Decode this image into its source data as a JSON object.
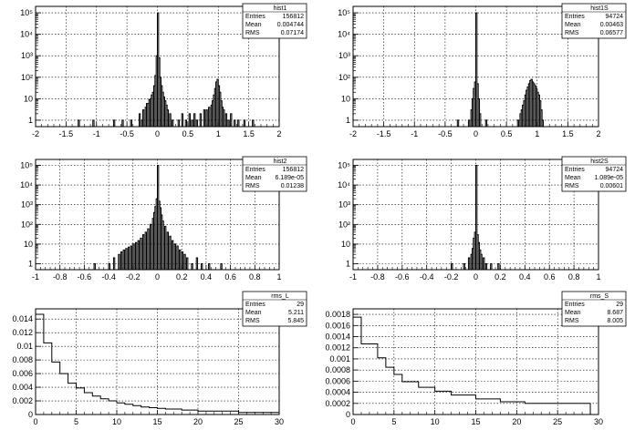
{
  "chart_data": [
    {
      "id": "hist1",
      "type": "histogram",
      "log_y": true,
      "xlim": [
        -2,
        2
      ],
      "ylim": [
        0.5,
        200000
      ],
      "x_ticks": [
        -2,
        -1.5,
        -1,
        -0.5,
        0,
        0.5,
        1,
        1.5,
        2
      ],
      "x_tick_labels": [
        "-2",
        "-1.5",
        "-1",
        "-0.5",
        "0",
        "0.5",
        "1",
        "1.5",
        "2"
      ],
      "y_tick_labels": [
        "1",
        "10",
        "10²",
        "10³",
        "10⁴",
        "10⁵"
      ],
      "grid": true,
      "bin_width": 0.02,
      "bins": [
        [
          -1.3,
          1
        ],
        [
          -1.06,
          1
        ],
        [
          -0.72,
          1
        ],
        [
          -0.58,
          1
        ],
        [
          -0.44,
          1
        ],
        [
          -0.3,
          2
        ],
        [
          -0.26,
          1
        ],
        [
          -0.24,
          3
        ],
        [
          -0.2,
          4
        ],
        [
          -0.18,
          6
        ],
        [
          -0.16,
          6
        ],
        [
          -0.14,
          9
        ],
        [
          -0.12,
          10
        ],
        [
          -0.1,
          15
        ],
        [
          -0.08,
          20
        ],
        [
          -0.06,
          40
        ],
        [
          -0.04,
          120
        ],
        [
          -0.02,
          1000
        ],
        [
          0,
          100000
        ],
        [
          0.02,
          800
        ],
        [
          0.04,
          100
        ],
        [
          0.06,
          40
        ],
        [
          0.08,
          20
        ],
        [
          0.1,
          12
        ],
        [
          0.12,
          8
        ],
        [
          0.14,
          5
        ],
        [
          0.16,
          3
        ],
        [
          0.2,
          2
        ],
        [
          0.24,
          1
        ],
        [
          0.34,
          1
        ],
        [
          0.4,
          2
        ],
        [
          0.46,
          1
        ],
        [
          0.52,
          2
        ],
        [
          0.56,
          1
        ],
        [
          0.6,
          2
        ],
        [
          0.64,
          1
        ],
        [
          0.7,
          2
        ],
        [
          0.76,
          3
        ],
        [
          0.8,
          3
        ],
        [
          0.84,
          4
        ],
        [
          0.88,
          5
        ],
        [
          0.9,
          8
        ],
        [
          0.92,
          15
        ],
        [
          0.94,
          30
        ],
        [
          0.96,
          60
        ],
        [
          0.98,
          80
        ],
        [
          1.0,
          40
        ],
        [
          1.02,
          20
        ],
        [
          1.04,
          8
        ],
        [
          1.06,
          4
        ],
        [
          1.08,
          3
        ],
        [
          1.12,
          2
        ],
        [
          1.16,
          1
        ],
        [
          1.2,
          2
        ],
        [
          1.26,
          1
        ],
        [
          1.32,
          1
        ],
        [
          1.42,
          1
        ],
        [
          1.56,
          1
        ]
      ],
      "stats": {
        "title": "hist1",
        "rows": [
          [
            "Entries",
            "156812"
          ],
          [
            "Mean",
            "0.004744"
          ],
          [
            "RMS",
            "0.07174"
          ]
        ]
      }
    },
    {
      "id": "hist1S",
      "type": "histogram",
      "log_y": true,
      "xlim": [
        -2,
        2
      ],
      "ylim": [
        0.5,
        200000
      ],
      "x_ticks": [
        -2,
        -1.5,
        -1,
        -0.5,
        0,
        0.5,
        1,
        1.5,
        2
      ],
      "x_tick_labels": [
        "-2",
        "-1.5",
        "-1",
        "-0.5",
        "0",
        "0.5",
        "1",
        "1.5",
        "2"
      ],
      "y_tick_labels": [
        "1",
        "10",
        "10²",
        "10³",
        "10⁴",
        "10⁵"
      ],
      "grid": true,
      "bin_width": 0.02,
      "bins": [
        [
          -0.3,
          1
        ],
        [
          -0.12,
          1
        ],
        [
          -0.08,
          3
        ],
        [
          -0.06,
          10
        ],
        [
          -0.04,
          30
        ],
        [
          -0.02,
          60
        ],
        [
          0,
          100000
        ],
        [
          0.02,
          50
        ],
        [
          0.04,
          10
        ],
        [
          0.06,
          2
        ],
        [
          0.16,
          1
        ],
        [
          0.68,
          1
        ],
        [
          0.72,
          2
        ],
        [
          0.74,
          3
        ],
        [
          0.76,
          5
        ],
        [
          0.78,
          8
        ],
        [
          0.8,
          15
        ],
        [
          0.82,
          25
        ],
        [
          0.84,
          35
        ],
        [
          0.86,
          50
        ],
        [
          0.88,
          70
        ],
        [
          0.9,
          80
        ],
        [
          0.92,
          60
        ],
        [
          0.94,
          50
        ],
        [
          0.96,
          40
        ],
        [
          0.98,
          30
        ],
        [
          1.0,
          20
        ],
        [
          1.02,
          15
        ],
        [
          1.04,
          8
        ],
        [
          1.06,
          3
        ],
        [
          1.08,
          1
        ]
      ],
      "stats": {
        "title": "hist1S",
        "rows": [
          [
            "Entries",
            "94724"
          ],
          [
            "Mean",
            "0.00463"
          ],
          [
            "RMS",
            "0.06577"
          ]
        ]
      }
    },
    {
      "id": "hist2",
      "type": "histogram",
      "log_y": true,
      "xlim": [
        -1,
        1
      ],
      "ylim": [
        0.5,
        200000
      ],
      "x_ticks": [
        -1,
        -0.8,
        -0.6,
        -0.4,
        -0.2,
        0,
        0.2,
        0.4,
        0.6,
        0.8,
        1
      ],
      "x_tick_labels": [
        "-1",
        "-0.8",
        "-0.6",
        "-0.4",
        "-0.2",
        "0",
        "0.2",
        "0.4",
        "0.6",
        "0.8",
        "1"
      ],
      "y_tick_labels": [
        "1",
        "10",
        "10²",
        "10³",
        "10⁴",
        "10⁵"
      ],
      "grid": true,
      "bin_width": 0.01,
      "bins": [
        [
          -0.52,
          1
        ],
        [
          -0.4,
          1
        ],
        [
          -0.36,
          2
        ],
        [
          -0.32,
          3
        ],
        [
          -0.3,
          4
        ],
        [
          -0.28,
          5
        ],
        [
          -0.26,
          6
        ],
        [
          -0.24,
          7
        ],
        [
          -0.22,
          8
        ],
        [
          -0.2,
          10
        ],
        [
          -0.18,
          12
        ],
        [
          -0.16,
          15
        ],
        [
          -0.14,
          20
        ],
        [
          -0.12,
          30
        ],
        [
          -0.1,
          40
        ],
        [
          -0.08,
          60
        ],
        [
          -0.06,
          100
        ],
        [
          -0.04,
          200
        ],
        [
          -0.03,
          400
        ],
        [
          -0.02,
          800
        ],
        [
          -0.01,
          2000
        ],
        [
          0,
          100000
        ],
        [
          0.01,
          1500
        ],
        [
          0.02,
          700
        ],
        [
          0.03,
          300
        ],
        [
          0.04,
          150
        ],
        [
          0.06,
          80
        ],
        [
          0.08,
          40
        ],
        [
          0.1,
          25
        ],
        [
          0.12,
          15
        ],
        [
          0.14,
          10
        ],
        [
          0.16,
          8
        ],
        [
          0.18,
          5
        ],
        [
          0.2,
          4
        ],
        [
          0.22,
          3
        ],
        [
          0.24,
          2
        ],
        [
          0.28,
          1
        ],
        [
          0.32,
          2
        ],
        [
          0.36,
          1
        ],
        [
          0.42,
          1
        ],
        [
          0.52,
          1
        ]
      ],
      "stats": {
        "title": "hist2",
        "rows": [
          [
            "Entries",
            "156812"
          ],
          [
            "Mean",
            "6.189e-05"
          ],
          [
            "RMS",
            "0.01238"
          ]
        ]
      }
    },
    {
      "id": "hist2S",
      "type": "histogram",
      "log_y": true,
      "xlim": [
        -1,
        1
      ],
      "ylim": [
        0.5,
        200000
      ],
      "x_ticks": [
        -1,
        -0.8,
        -0.6,
        -0.4,
        -0.2,
        0,
        0.2,
        0.4,
        0.6,
        0.8,
        1
      ],
      "x_tick_labels": [
        "-1",
        "-0.8",
        "-0.6",
        "-0.4",
        "-0.2",
        "0",
        "0.2",
        "0.4",
        "0.6",
        "0.8",
        "1"
      ],
      "y_tick_labels": [
        "1",
        "10",
        "10²",
        "10³",
        "10⁴",
        "10⁵"
      ],
      "grid": true,
      "bin_width": 0.01,
      "bins": [
        [
          -0.2,
          1
        ],
        [
          -0.1,
          1
        ],
        [
          -0.06,
          2
        ],
        [
          -0.04,
          3
        ],
        [
          -0.03,
          6
        ],
        [
          -0.02,
          20
        ],
        [
          -0.01,
          40
        ],
        [
          0,
          100000
        ],
        [
          0.01,
          30
        ],
        [
          0.02,
          12
        ],
        [
          0.03,
          5
        ],
        [
          0.04,
          3
        ],
        [
          0.06,
          2
        ],
        [
          0.08,
          1
        ],
        [
          0.12,
          1
        ],
        [
          0.18,
          1
        ]
      ],
      "stats": {
        "title": "hist2S",
        "rows": [
          [
            "Entries",
            "94724"
          ],
          [
            "Mean",
            "1.089e-05"
          ],
          [
            "RMS",
            "0.00601"
          ]
        ]
      }
    },
    {
      "id": "rms_L",
      "type": "histogram",
      "log_y": false,
      "xlim": [
        0,
        30
      ],
      "ylim": [
        0,
        0.0155
      ],
      "x_ticks": [
        0,
        5,
        10,
        15,
        20,
        25,
        30
      ],
      "x_tick_labels": [
        "0",
        "5",
        "10",
        "15",
        "20",
        "25",
        "30"
      ],
      "y_ticks": [
        0,
        0.002,
        0.004,
        0.006,
        0.008,
        0.01,
        0.012,
        0.014
      ],
      "y_tick_labels": [
        "0",
        "0.002",
        "0.004",
        "0.006",
        "0.008",
        "0.01",
        "0.012",
        "0.014"
      ],
      "grid": true,
      "bin_edges": [
        0,
        1,
        2,
        3,
        4,
        5,
        6,
        7,
        8,
        9,
        10,
        11,
        12,
        13,
        14,
        15,
        16,
        18,
        20,
        25,
        30
      ],
      "values": [
        0.0147,
        0.0105,
        0.0077,
        0.006,
        0.0046,
        0.0039,
        0.0032,
        0.0027,
        0.0023,
        0.002,
        0.0017,
        0.0015,
        0.0013,
        0.0011,
        0.001,
        0.0009,
        0.0008,
        0.00065,
        0.0005,
        0.0003
      ],
      "stats": {
        "title": "rms_L",
        "rows": [
          [
            "Entries",
            "29"
          ],
          [
            "Mean",
            "5.211"
          ],
          [
            "RMS",
            "5.845"
          ]
        ]
      }
    },
    {
      "id": "rms_S",
      "type": "histogram",
      "log_y": false,
      "xlim": [
        0,
        30
      ],
      "ylim": [
        0,
        0.0019
      ],
      "x_ticks": [
        0,
        5,
        10,
        15,
        20,
        25,
        30
      ],
      "x_tick_labels": [
        "0",
        "5",
        "10",
        "15",
        "20",
        "25",
        "30"
      ],
      "y_ticks": [
        0,
        0.0002,
        0.0004,
        0.0006,
        0.0008,
        0.001,
        0.0012,
        0.0014,
        0.0016,
        0.0018
      ],
      "y_tick_labels": [
        "0",
        "0.0002",
        "0.0004",
        "0.0006",
        "0.0008",
        "0.001",
        "0.0012",
        "0.0014",
        "0.0016",
        "0.0018"
      ],
      "grid": true,
      "bin_edges": [
        0,
        1,
        3,
        4,
        5,
        6,
        8,
        10,
        12,
        15,
        18,
        21,
        29
      ],
      "values": [
        0.00175,
        0.00127,
        0.00102,
        0.00085,
        0.00072,
        0.00059,
        0.00049,
        0.00042,
        0.00035,
        0.00028,
        0.00023,
        0.0002
      ],
      "stats": {
        "title": "rms_S",
        "rows": [
          [
            "Entries",
            "29"
          ],
          [
            "Mean",
            "8.687"
          ],
          [
            "RMS",
            "8.005"
          ]
        ]
      }
    }
  ]
}
